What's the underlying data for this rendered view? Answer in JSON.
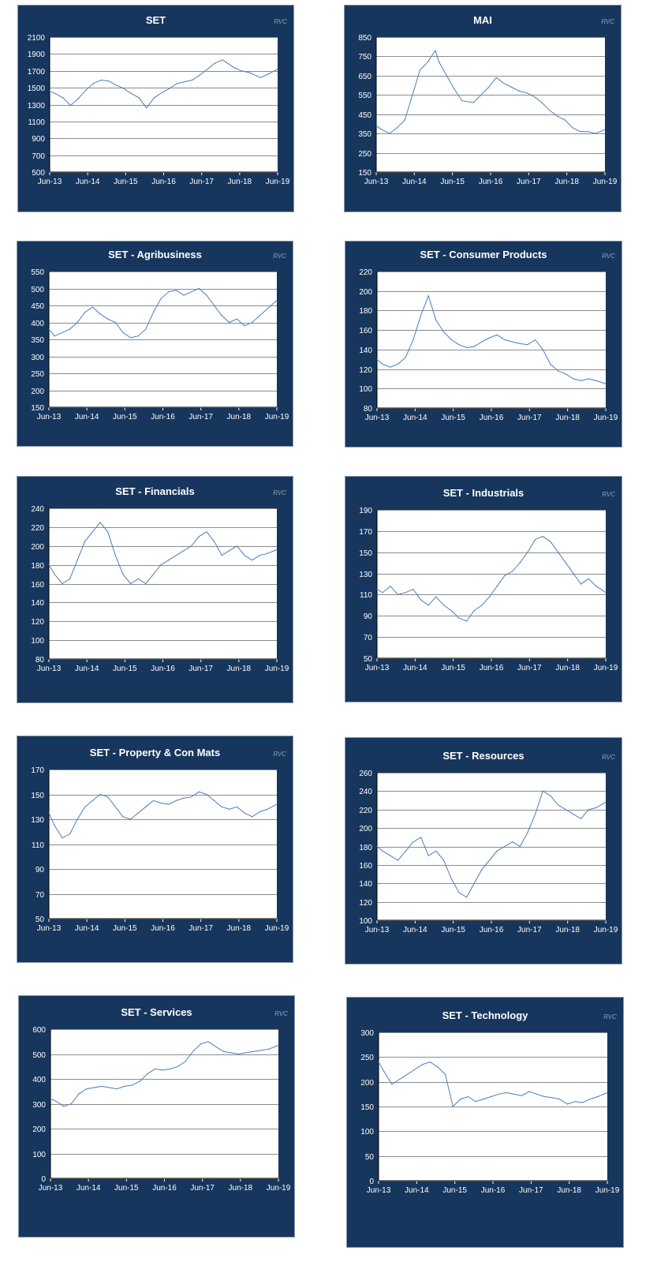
{
  "chart_data": [
    {
      "type": "line",
      "title": "SET",
      "source": "RVC",
      "xlabel": "",
      "ylabel": "",
      "ylim": [
        500,
        2100
      ],
      "yticks": [
        500,
        700,
        900,
        1100,
        1300,
        1500,
        1700,
        1900,
        2100
      ],
      "xticks": [
        "Jun-13",
        "Jun-14",
        "Jun-15",
        "Jun-16",
        "Jun-17",
        "Jun-18",
        "Jun-19"
      ],
      "grid": true,
      "series": [
        {
          "x": [
            2013.45,
            2013.6,
            2013.8,
            2014.0,
            2014.2,
            2014.4,
            2014.6,
            2014.8,
            2015.0,
            2015.2,
            2015.4,
            2015.6,
            2015.8,
            2016.0,
            2016.2,
            2016.4,
            2016.6,
            2016.8,
            2017.0,
            2017.2,
            2017.4,
            2017.6,
            2017.8,
            2018.0,
            2018.1,
            2018.3,
            2018.5,
            2018.7,
            2018.9,
            2019.0,
            2019.2,
            2019.45
          ],
          "y": [
            1460,
            1430,
            1380,
            1290,
            1370,
            1470,
            1550,
            1590,
            1580,
            1530,
            1490,
            1430,
            1380,
            1260,
            1380,
            1440,
            1490,
            1550,
            1570,
            1590,
            1650,
            1720,
            1790,
            1830,
            1800,
            1740,
            1700,
            1680,
            1640,
            1620,
            1660,
            1720
          ]
        }
      ]
    },
    {
      "type": "line",
      "title": "MAI",
      "source": "RVC",
      "xlabel": "",
      "ylabel": "",
      "ylim": [
        150,
        850
      ],
      "yticks": [
        150,
        250,
        350,
        450,
        550,
        650,
        750,
        850
      ],
      "xticks": [
        "Jun-13",
        "Jun-14",
        "Jun-15",
        "Jun-16",
        "Jun-17",
        "Jun-18",
        "Jun-19"
      ],
      "grid": true,
      "series": [
        {
          "x": [
            2013.45,
            2013.6,
            2013.8,
            2014.0,
            2014.2,
            2014.4,
            2014.6,
            2014.8,
            2015.0,
            2015.1,
            2015.3,
            2015.5,
            2015.7,
            2016.0,
            2016.2,
            2016.4,
            2016.6,
            2016.8,
            2017.0,
            2017.2,
            2017.4,
            2017.6,
            2017.8,
            2018.0,
            2018.2,
            2018.4,
            2018.6,
            2018.8,
            2019.0,
            2019.2,
            2019.45
          ],
          "y": [
            390,
            370,
            350,
            380,
            420,
            550,
            680,
            720,
            780,
            720,
            650,
            580,
            520,
            510,
            550,
            590,
            640,
            610,
            590,
            570,
            560,
            540,
            510,
            470,
            440,
            420,
            380,
            360,
            360,
            350,
            370
          ]
        }
      ]
    },
    {
      "type": "line",
      "title": "SET - Agribusiness",
      "source": "RVC",
      "xlabel": "",
      "ylabel": "",
      "ylim": [
        150,
        550
      ],
      "yticks": [
        150,
        200,
        250,
        300,
        350,
        400,
        450,
        500,
        550
      ],
      "xticks": [
        "Jun-13",
        "Jun-14",
        "Jun-15",
        "Jun-16",
        "Jun-17",
        "Jun-18",
        "Jun-19"
      ],
      "grid": true,
      "series": [
        {
          "x": [
            2013.45,
            2013.6,
            2013.8,
            2014.0,
            2014.2,
            2014.4,
            2014.6,
            2014.8,
            2015.0,
            2015.2,
            2015.4,
            2015.6,
            2015.8,
            2016.0,
            2016.2,
            2016.4,
            2016.6,
            2016.8,
            2017.0,
            2017.2,
            2017.4,
            2017.6,
            2017.8,
            2018.0,
            2018.2,
            2018.4,
            2018.6,
            2018.8,
            2019.0,
            2019.2,
            2019.45
          ],
          "y": [
            380,
            360,
            370,
            380,
            400,
            430,
            445,
            425,
            410,
            400,
            370,
            355,
            360,
            380,
            430,
            470,
            490,
            495,
            480,
            490,
            500,
            480,
            450,
            420,
            400,
            410,
            390,
            400,
            420,
            440,
            465
          ]
        }
      ]
    },
    {
      "type": "line",
      "title": "SET - Consumer Products",
      "source": "RVC",
      "xlabel": "",
      "ylabel": "",
      "ylim": [
        80,
        220
      ],
      "yticks": [
        80,
        100,
        120,
        140,
        160,
        180,
        200,
        220
      ],
      "xticks": [
        "Jun-13",
        "Jun-14",
        "Jun-15",
        "Jun-16",
        "Jun-17",
        "Jun-18",
        "Jun-19"
      ],
      "grid": true,
      "series": [
        {
          "x": [
            2013.45,
            2013.6,
            2013.8,
            2014.0,
            2014.2,
            2014.4,
            2014.6,
            2014.8,
            2015.0,
            2015.2,
            2015.4,
            2015.6,
            2015.8,
            2016.0,
            2016.2,
            2016.4,
            2016.6,
            2016.8,
            2017.0,
            2017.2,
            2017.4,
            2017.6,
            2017.8,
            2018.0,
            2018.2,
            2018.4,
            2018.6,
            2018.8,
            2019.0,
            2019.2,
            2019.45
          ],
          "y": [
            130,
            125,
            122,
            125,
            132,
            150,
            175,
            195,
            170,
            158,
            150,
            145,
            142,
            143,
            148,
            152,
            155,
            150,
            148,
            146,
            145,
            150,
            140,
            125,
            118,
            115,
            110,
            108,
            110,
            108,
            105
          ]
        }
      ]
    },
    {
      "type": "line",
      "title": "SET - Financials",
      "source": "RVC",
      "xlabel": "",
      "ylabel": "",
      "ylim": [
        80,
        240
      ],
      "yticks": [
        80,
        100,
        120,
        140,
        160,
        180,
        200,
        220,
        240
      ],
      "xticks": [
        "Jun-13",
        "Jun-14",
        "Jun-15",
        "Jun-16",
        "Jun-17",
        "Jun-18",
        "Jun-19"
      ],
      "grid": true,
      "series": [
        {
          "x": [
            2013.45,
            2013.6,
            2013.8,
            2014.0,
            2014.2,
            2014.4,
            2014.6,
            2014.8,
            2015.0,
            2015.2,
            2015.4,
            2015.6,
            2015.8,
            2016.0,
            2016.2,
            2016.4,
            2016.6,
            2016.8,
            2017.0,
            2017.2,
            2017.4,
            2017.6,
            2017.8,
            2018.0,
            2018.2,
            2018.4,
            2018.6,
            2018.8,
            2019.0,
            2019.2,
            2019.45
          ],
          "y": [
            180,
            170,
            160,
            165,
            185,
            205,
            215,
            225,
            215,
            190,
            170,
            160,
            165,
            160,
            170,
            180,
            185,
            190,
            195,
            200,
            210,
            215,
            205,
            190,
            195,
            200,
            190,
            185,
            190,
            192,
            196
          ]
        }
      ]
    },
    {
      "type": "line",
      "title": "SET - Industrials",
      "source": "RVC",
      "xlabel": "",
      "ylabel": "",
      "ylim": [
        50,
        190
      ],
      "yticks": [
        50,
        70,
        90,
        110,
        130,
        150,
        170,
        190
      ],
      "xticks": [
        "Jun-13",
        "Jun-14",
        "Jun-15",
        "Jun-16",
        "Jun-17",
        "Jun-18",
        "Jun-19"
      ],
      "grid": true,
      "series": [
        {
          "x": [
            2013.45,
            2013.6,
            2013.8,
            2014.0,
            2014.2,
            2014.4,
            2014.6,
            2014.8,
            2015.0,
            2015.2,
            2015.4,
            2015.6,
            2015.8,
            2016.0,
            2016.2,
            2016.4,
            2016.6,
            2016.8,
            2017.0,
            2017.2,
            2017.4,
            2017.6,
            2017.8,
            2018.0,
            2018.2,
            2018.4,
            2018.6,
            2018.8,
            2019.0,
            2019.2,
            2019.45
          ],
          "y": [
            115,
            112,
            118,
            110,
            112,
            115,
            105,
            100,
            108,
            100,
            95,
            88,
            85,
            95,
            100,
            108,
            118,
            128,
            132,
            140,
            150,
            162,
            165,
            160,
            150,
            140,
            130,
            120,
            125,
            118,
            112
          ]
        }
      ]
    },
    {
      "type": "line",
      "title": "SET - Property & Con Mats",
      "source": "RVC",
      "xlabel": "",
      "ylabel": "",
      "ylim": [
        50,
        170
      ],
      "yticks": [
        50,
        70,
        90,
        110,
        130,
        150,
        170
      ],
      "xticks": [
        "Jun-13",
        "Jun-14",
        "Jun-15",
        "Jun-16",
        "Jun-17",
        "Jun-18",
        "Jun-19"
      ],
      "grid": true,
      "series": [
        {
          "x": [
            2013.45,
            2013.6,
            2013.8,
            2014.0,
            2014.2,
            2014.4,
            2014.6,
            2014.8,
            2015.0,
            2015.2,
            2015.4,
            2015.6,
            2015.8,
            2016.0,
            2016.2,
            2016.4,
            2016.6,
            2016.8,
            2017.0,
            2017.2,
            2017.4,
            2017.6,
            2017.8,
            2018.0,
            2018.2,
            2018.4,
            2018.6,
            2018.8,
            2019.0,
            2019.2,
            2019.45
          ],
          "y": [
            135,
            125,
            115,
            118,
            130,
            140,
            145,
            150,
            148,
            140,
            132,
            130,
            135,
            140,
            145,
            143,
            142,
            145,
            147,
            148,
            152,
            150,
            145,
            140,
            138,
            140,
            135,
            132,
            136,
            138,
            142
          ]
        }
      ]
    },
    {
      "type": "line",
      "title": "SET - Resources",
      "source": "RVC",
      "xlabel": "",
      "ylabel": "",
      "ylim": [
        100,
        260
      ],
      "yticks": [
        100,
        120,
        140,
        160,
        180,
        200,
        220,
        240,
        260
      ],
      "xticks": [
        "Jun-13",
        "Jun-14",
        "Jun-15",
        "Jun-16",
        "Jun-17",
        "Jun-18",
        "Jun-19"
      ],
      "grid": true,
      "series": [
        {
          "x": [
            2013.45,
            2013.6,
            2013.8,
            2014.0,
            2014.2,
            2014.4,
            2014.6,
            2014.8,
            2015.0,
            2015.2,
            2015.4,
            2015.6,
            2015.8,
            2016.0,
            2016.2,
            2016.4,
            2016.6,
            2016.8,
            2017.0,
            2017.2,
            2017.4,
            2017.6,
            2017.8,
            2018.0,
            2018.2,
            2018.4,
            2018.6,
            2018.8,
            2019.0,
            2019.2,
            2019.45
          ],
          "y": [
            180,
            175,
            170,
            165,
            175,
            185,
            190,
            170,
            175,
            165,
            145,
            130,
            125,
            140,
            155,
            165,
            175,
            180,
            185,
            180,
            195,
            215,
            240,
            235,
            225,
            220,
            215,
            210,
            220,
            222,
            228
          ]
        }
      ]
    },
    {
      "type": "line",
      "title": "SET - Services",
      "source": "RVC",
      "xlabel": "",
      "ylabel": "",
      "ylim": [
        0,
        600
      ],
      "yticks": [
        0,
        100,
        200,
        300,
        400,
        500,
        600
      ],
      "xticks": [
        "Jun-13",
        "Jun-14",
        "Jun-15",
        "Jun-16",
        "Jun-17",
        "Jun-18",
        "Jun-19"
      ],
      "grid": true,
      "series": [
        {
          "x": [
            2013.45,
            2013.6,
            2013.8,
            2014.0,
            2014.2,
            2014.4,
            2014.6,
            2014.8,
            2015.0,
            2015.2,
            2015.4,
            2015.6,
            2015.8,
            2016.0,
            2016.2,
            2016.4,
            2016.6,
            2016.8,
            2017.0,
            2017.2,
            2017.4,
            2017.6,
            2017.8,
            2018.0,
            2018.2,
            2018.4,
            2018.6,
            2018.8,
            2019.0,
            2019.2,
            2019.45
          ],
          "y": [
            320,
            310,
            290,
            300,
            340,
            360,
            365,
            370,
            365,
            360,
            370,
            375,
            390,
            420,
            440,
            435,
            440,
            450,
            470,
            510,
            540,
            550,
            530,
            510,
            505,
            500,
            505,
            510,
            515,
            520,
            535
          ]
        }
      ]
    },
    {
      "type": "line",
      "title": "SET - Technology",
      "source": "RVC",
      "xlabel": "",
      "ylabel": "",
      "ylim": [
        0,
        300
      ],
      "yticks": [
        0,
        50,
        100,
        150,
        200,
        250,
        300
      ],
      "xticks": [
        "Jun-13",
        "Jun-14",
        "Jun-15",
        "Jun-16",
        "Jun-17",
        "Jun-18",
        "Jun-19"
      ],
      "grid": true,
      "series": [
        {
          "x": [
            2013.45,
            2013.6,
            2013.8,
            2014.0,
            2014.2,
            2014.4,
            2014.6,
            2014.8,
            2015.0,
            2015.2,
            2015.4,
            2015.6,
            2015.8,
            2016.0,
            2016.2,
            2016.4,
            2016.6,
            2016.8,
            2017.0,
            2017.2,
            2017.4,
            2017.6,
            2017.8,
            2018.0,
            2018.2,
            2018.4,
            2018.6,
            2018.8,
            2019.0,
            2019.2,
            2019.45
          ],
          "y": [
            240,
            220,
            195,
            205,
            215,
            225,
            235,
            240,
            230,
            215,
            150,
            165,
            170,
            160,
            165,
            170,
            175,
            178,
            175,
            172,
            180,
            175,
            170,
            168,
            165,
            155,
            160,
            158,
            165,
            170,
            178
          ]
        }
      ]
    }
  ]
}
